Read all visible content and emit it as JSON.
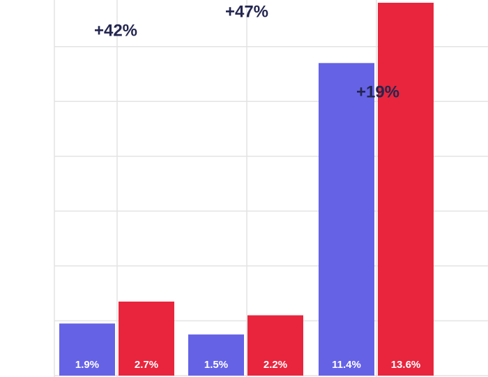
{
  "chart_data": {
    "type": "bar",
    "categories": [
      null,
      null,
      null
    ],
    "series": [
      {
        "color": "#6562e6",
        "values": [
          1.9,
          1.5,
          11.4
        ],
        "value_labels": [
          "1.9%",
          "1.5%",
          "11.4%"
        ]
      },
      {
        "color": "#e8253d",
        "values": [
          2.7,
          2.2,
          13.6
        ],
        "value_labels": [
          "2.7%",
          "2.2%",
          "13.6%"
        ]
      }
    ],
    "annotations": [
      "+42%",
      "+47%",
      "+19%"
    ],
    "ylim": [
      0,
      13.7
    ],
    "yticks": [
      0,
      2,
      4,
      6,
      8,
      10,
      12
    ],
    "grid": true
  }
}
